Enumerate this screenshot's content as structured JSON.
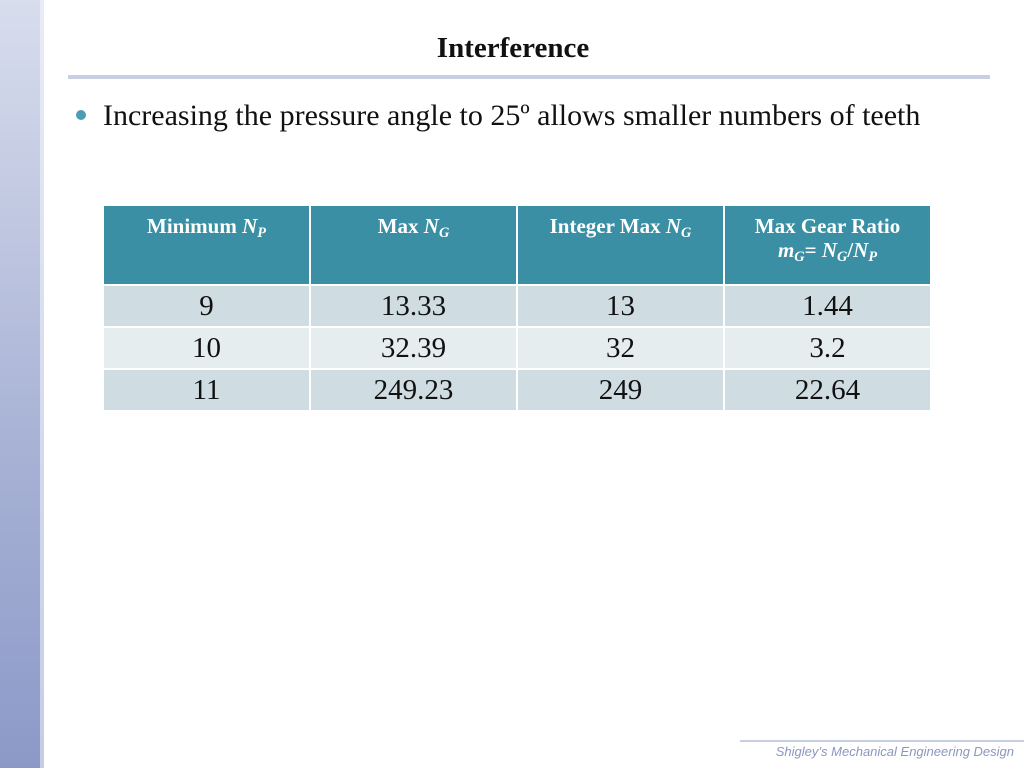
{
  "slide": {
    "title": "Interference",
    "bullet": "Increasing the pressure angle to 25º allows smaller numbers of teeth",
    "footer": "Shigley’s Mechanical Engineering Design"
  },
  "table": {
    "headers": [
      {
        "text": "Minimum ",
        "var": "N",
        "sub": "P"
      },
      {
        "text": "Max ",
        "var": "N",
        "sub": "G"
      },
      {
        "text": "Integer Max ",
        "var": "N",
        "sub": "G"
      },
      {
        "line1": "Max Gear Ratio",
        "m": "m",
        "m_sub": "G",
        "eq": "= ",
        "n1": "N",
        "n1_sub": "G",
        "slash": "/",
        "n2": "N",
        "n2_sub": "P"
      }
    ],
    "rows": [
      [
        "9",
        "13.33",
        "13",
        "1.44"
      ],
      [
        "10",
        "32.39",
        "32",
        "3.2"
      ],
      [
        "11",
        "249.23",
        "249",
        "22.64"
      ]
    ]
  },
  "colors": {
    "header_bg": "#3a8fa4",
    "row_dark": "#cfdde2",
    "row_light": "#e6edef",
    "bullet_dot": "#4a9db4",
    "accent_rule": "#c9cfe3"
  }
}
